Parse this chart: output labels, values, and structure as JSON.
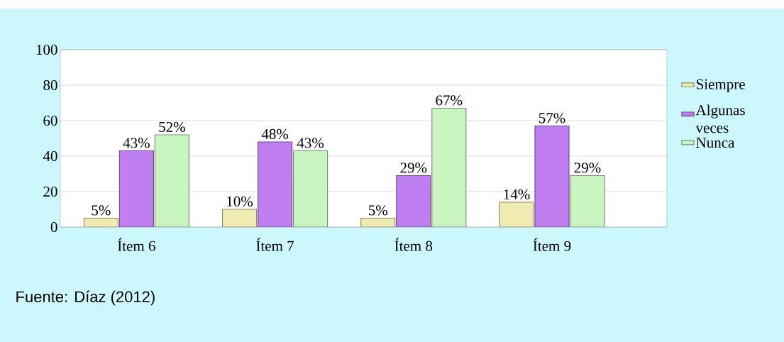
{
  "chart_data": {
    "type": "bar",
    "categories": [
      "Ítem 6",
      "Ítem 7",
      "Ítem 8",
      "Ítem  9"
    ],
    "series": [
      {
        "name": "Siempre",
        "color": "#f0ebb0",
        "values": [
          5,
          10,
          5,
          14
        ],
        "value_labels": [
          "5%",
          "10%",
          "5%",
          "14%"
        ]
      },
      {
        "name": "Algunas veces",
        "color": "#c07ff0",
        "values": [
          43,
          48,
          29,
          57
        ],
        "value_labels": [
          "43%",
          "48%",
          "29%",
          "57%"
        ]
      },
      {
        "name": "Nunca",
        "color": "#c8f5c0",
        "values": [
          52,
          43,
          67,
          29
        ],
        "value_labels": [
          "52%",
          "43%",
          "67%",
          "29%"
        ]
      }
    ],
    "ylim": [
      0,
      100
    ],
    "yticks": [
      0,
      20,
      40,
      60,
      80,
      100
    ],
    "grid": "y",
    "legend": "right",
    "annotations": [
      "Fuente: Díaz (2012)"
    ]
  }
}
